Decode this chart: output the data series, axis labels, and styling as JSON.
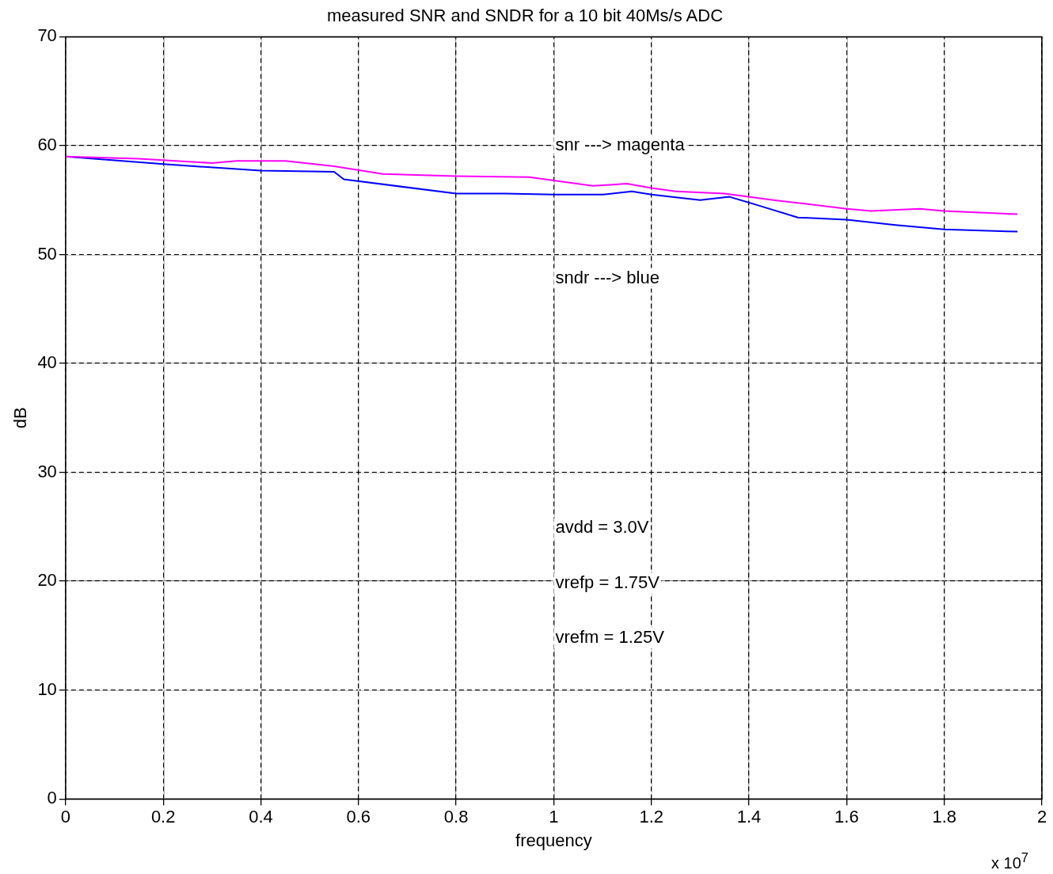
{
  "chart_data": {
    "type": "line",
    "title": "measured SNR and SNDR for a 10 bit 40Ms/s ADC",
    "xlabel": "frequency",
    "ylabel": "dB",
    "xlim": [
      0,
      2
    ],
    "xticks": [
      0,
      0.2,
      0.4,
      0.6,
      0.8,
      1,
      1.2,
      1.4,
      1.6,
      1.8,
      2
    ],
    "ylim": [
      0,
      70
    ],
    "yticks": [
      0,
      10,
      20,
      30,
      40,
      50,
      60,
      70
    ],
    "grid": true,
    "line_style": "solid",
    "marker": "none",
    "annotations": [
      "x 10$^{7}$",
      "snr ---> magenta",
      "sndr ---> blue",
      "avdd = 3.0V",
      "vrefp = 1.75V",
      "vrefm = 1.25V"
    ],
    "series": [
      {
        "color": "#ff00ff",
        "x": [
          0,
          0.15,
          0.3,
          0.35,
          0.45,
          0.55,
          0.65,
          0.8,
          0.95,
          1.08,
          1.15,
          1.2,
          1.25,
          1.35,
          1.45,
          1.6,
          1.65,
          1.75,
          1.8,
          1.95
        ],
        "values": [
          59.0,
          58.8,
          58.4,
          58.6,
          58.6,
          58.1,
          57.4,
          57.2,
          57.1,
          56.3,
          56.5,
          56.1,
          55.8,
          55.6,
          55.0,
          54.2,
          54.0,
          54.2,
          54.0,
          53.7
        ]
      },
      {
        "color": "#0000ff",
        "x": [
          0,
          0.2,
          0.4,
          0.55,
          0.57,
          0.8,
          0.9,
          1.0,
          1.1,
          1.16,
          1.2,
          1.3,
          1.36,
          1.42,
          1.5,
          1.6,
          1.7,
          1.8,
          1.95
        ],
        "values": [
          59.0,
          58.3,
          57.7,
          57.6,
          56.9,
          55.6,
          55.6,
          55.5,
          55.5,
          55.8,
          55.5,
          55.0,
          55.3,
          54.5,
          53.4,
          53.2,
          52.7,
          52.3,
          52.1
        ]
      }
    ]
  }
}
